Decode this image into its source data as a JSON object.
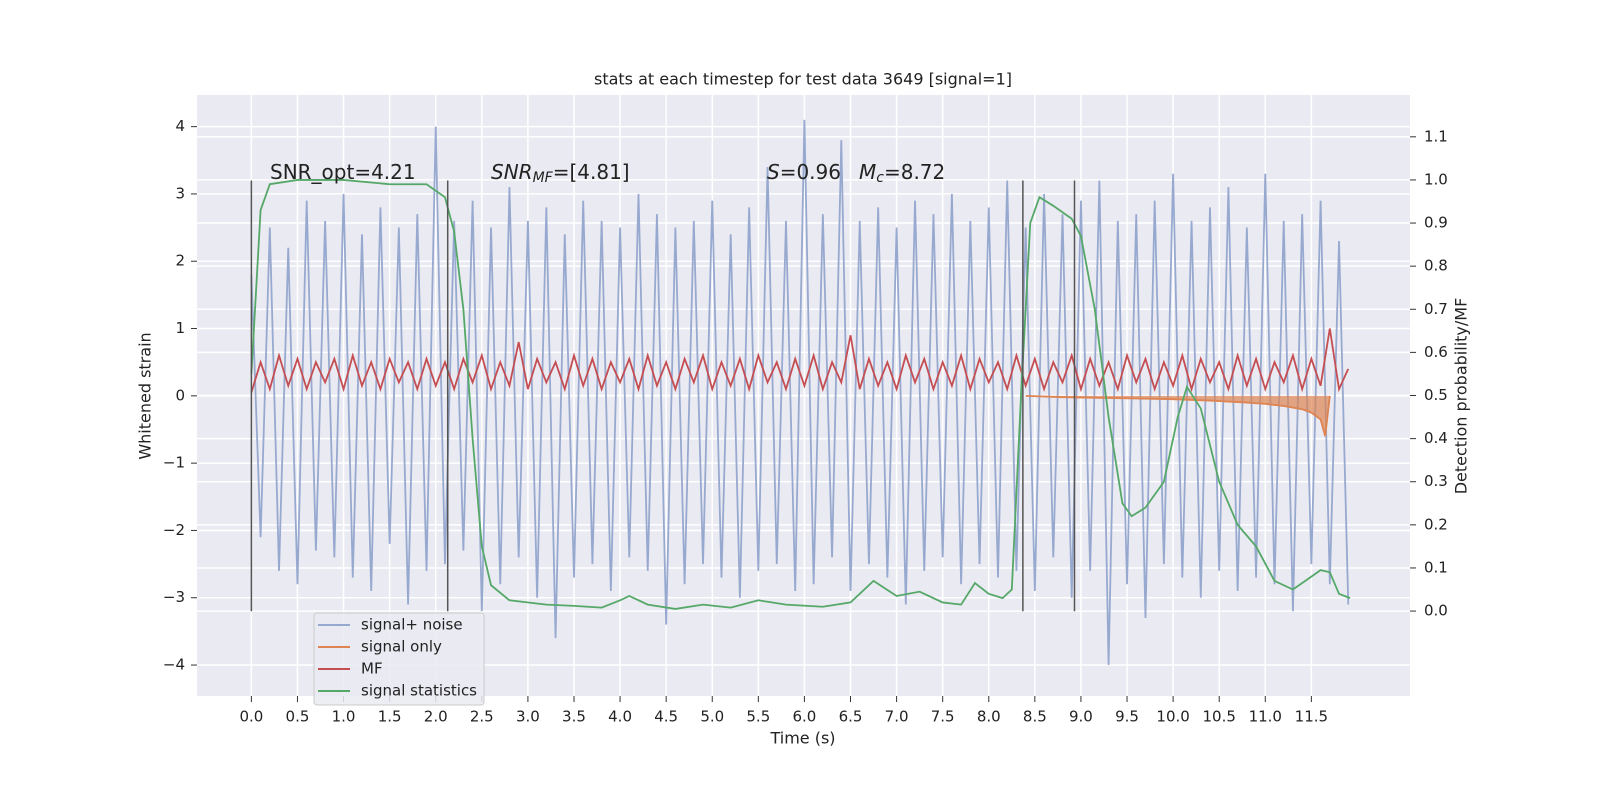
{
  "chart_data": {
    "type": "line",
    "title": "stats at each timestep for test data 3649 [signal=1]",
    "xlabel": "Time (s)",
    "ylabel": "Whitened strain",
    "y2label": "Detection probability/MF",
    "annotations": [
      [
        "SNR_opt=4.21"
      ],
      [
        "SNR",
        "MF",
        "=[4.81]"
      ],
      [
        "S",
        "=0.96",
        "M",
        "c",
        "=8.72"
      ]
    ],
    "xlim": [
      -0.59,
      12.57
    ],
    "ylim": [
      -4.46,
      4.47
    ],
    "y2lim": [
      -0.197,
      1.197
    ],
    "grid": true,
    "legend": "lower left",
    "xticks": [
      {
        "value": 0,
        "label": "0.0"
      },
      {
        "value": 0.5,
        "label": "0.5"
      },
      {
        "value": 1,
        "label": "1.0"
      },
      {
        "value": 1.5,
        "label": "1.5"
      },
      {
        "value": 2,
        "label": "2.0"
      },
      {
        "value": 2.5,
        "label": "2.5"
      },
      {
        "value": 3,
        "label": "3.0"
      },
      {
        "value": 3.5,
        "label": "3.5"
      },
      {
        "value": 4,
        "label": "4.0"
      },
      {
        "value": 4.5,
        "label": "4.5"
      },
      {
        "value": 5,
        "label": "5.0"
      },
      {
        "value": 5.5,
        "label": "5.5"
      },
      {
        "value": 6,
        "label": "6.0"
      },
      {
        "value": 6.5,
        "label": "6.5"
      },
      {
        "value": 7,
        "label": "7.0"
      },
      {
        "value": 7.5,
        "label": "7.5"
      },
      {
        "value": 8,
        "label": "8.0"
      },
      {
        "value": 8.5,
        "label": "8.5"
      },
      {
        "value": 9,
        "label": "9.0"
      },
      {
        "value": 9.5,
        "label": "9.5"
      },
      {
        "value": 10,
        "label": "10.0"
      },
      {
        "value": 10.5,
        "label": "10.5"
      },
      {
        "value": 11,
        "label": "11.0"
      },
      {
        "value": 11.5,
        "label": "11.5"
      }
    ],
    "yticks": [
      {
        "value": -4,
        "label": "−4"
      },
      {
        "value": -3,
        "label": "−3"
      },
      {
        "value": -2,
        "label": "−2"
      },
      {
        "value": -1,
        "label": "−1"
      },
      0,
      1,
      2,
      3,
      4
    ],
    "y2ticks": [
      {
        "value": 0,
        "label": "0.0"
      },
      {
        "value": 0.1,
        "label": "0.1"
      },
      {
        "value": 0.2,
        "label": "0.2"
      },
      {
        "value": 0.3,
        "label": "0.3"
      },
      {
        "value": 0.4,
        "label": "0.4"
      },
      {
        "value": 0.5,
        "label": "0.5"
      },
      {
        "value": 0.6,
        "label": "0.6"
      },
      {
        "value": 0.7,
        "label": "0.7"
      },
      {
        "value": 0.8,
        "label": "0.8"
      },
      {
        "value": 0.9,
        "label": "0.9"
      },
      {
        "value": 1,
        "label": "1.0"
      },
      {
        "value": 1.1,
        "label": "1.1"
      }
    ],
    "vlines": {
      "x": [
        0,
        2.13,
        8.37,
        8.93
      ],
      "ymin": -3.2,
      "ymax": 3.2,
      "color": "#555555"
    },
    "x": [
      0,
      0.1,
      0.2,
      0.3,
      0.4,
      0.5,
      0.6,
      0.7,
      0.8,
      0.9,
      1,
      1.1,
      1.2,
      1.3,
      1.4,
      1.5,
      1.6,
      1.7,
      1.8,
      1.9,
      2,
      2.1,
      2.2,
      2.3,
      2.4,
      2.5,
      2.6,
      2.7,
      2.8,
      2.9,
      3,
      3.1,
      3.2,
      3.3,
      3.4,
      3.5,
      3.6,
      3.7,
      3.8,
      3.9,
      4,
      4.1,
      4.2,
      4.3,
      4.4,
      4.5,
      4.6,
      4.7,
      4.8,
      4.9,
      5,
      5.1,
      5.2,
      5.3,
      5.4,
      5.5,
      5.6,
      5.7,
      5.8,
      5.9,
      6,
      6.1,
      6.2,
      6.3,
      6.4,
      6.5,
      6.6,
      6.7,
      6.8,
      6.9,
      7,
      7.1,
      7.2,
      7.3,
      7.4,
      7.5,
      7.6,
      7.7,
      7.8,
      7.9,
      8,
      8.1,
      8.2,
      8.3,
      8.4,
      8.5,
      8.6,
      8.7,
      8.8,
      8.9,
      9,
      9.1,
      9.2,
      9.3,
      9.4,
      9.5,
      9.6,
      9.7,
      9.8,
      9.9,
      10,
      10.1,
      10.2,
      10.3,
      10.4,
      10.5,
      10.6,
      10.7,
      10.8,
      10.9,
      11,
      11.1,
      11.2,
      11.3,
      11.4,
      11.5,
      11.6,
      11.7,
      11.8,
      11.9
    ],
    "series": [
      {
        "name": "signal+ noise",
        "color": "#98a9cf",
        "values": [
          1.8,
          -2.1,
          2.5,
          -2.6,
          2.2,
          -2.8,
          2.9,
          -2.3,
          2.6,
          -2.4,
          3.0,
          -2.7,
          2.4,
          -2.9,
          2.8,
          -2.2,
          2.5,
          -3.1,
          2.7,
          -2.6,
          4.0,
          -2.5,
          2.6,
          -2.3,
          2.9,
          -3.2,
          2.5,
          -2.8,
          3.1,
          -2.4,
          2.6,
          -3.0,
          2.8,
          -3.6,
          2.4,
          -2.7,
          2.9,
          -2.5,
          2.6,
          -2.9,
          2.5,
          -2.4,
          3.0,
          -2.6,
          2.7,
          -3.4,
          2.5,
          -2.8,
          2.6,
          -2.5,
          2.9,
          -2.7,
          2.4,
          -3.0,
          2.8,
          -2.6,
          3.4,
          -2.5,
          2.6,
          -2.9,
          4.1,
          -2.8,
          2.7,
          -2.4,
          3.8,
          -2.9,
          2.6,
          -2.5,
          2.8,
          -2.7,
          2.5,
          -3.1,
          2.9,
          -2.6,
          2.7,
          -2.4,
          3.0,
          -2.8,
          2.6,
          -2.5,
          2.8,
          -2.7,
          3.2,
          -2.6,
          2.5,
          -2.9,
          3.0,
          -2.4,
          2.7,
          -3.0,
          2.9,
          -2.6,
          3.2,
          -4.0,
          2.6,
          -2.8,
          2.7,
          -3.3,
          2.9,
          -2.5,
          3.3,
          -2.7,
          2.6,
          -3.0,
          2.8,
          -2.6,
          3.1,
          -2.9,
          2.5,
          -2.7,
          3.3,
          -2.8,
          2.6,
          -3.2,
          2.7,
          -2.5,
          2.9,
          -2.8,
          2.3,
          -3.1
        ]
      },
      {
        "name": "signal only",
        "color": "#dd8452",
        "x": [
          8.4,
          8.8,
          9.2,
          9.6,
          10.0,
          10.4,
          10.8,
          11.0,
          11.2,
          11.4,
          11.5,
          11.6,
          11.65,
          11.7
        ],
        "values": [
          0,
          -0.02,
          -0.03,
          -0.04,
          -0.05,
          -0.07,
          -0.1,
          -0.12,
          -0.15,
          -0.2,
          -0.25,
          -0.35,
          -0.6,
          0
        ]
      },
      {
        "name": "MF",
        "color": "#c44e52",
        "values": [
          0.05,
          0.5,
          0.1,
          0.6,
          0.15,
          0.55,
          0.1,
          0.5,
          0.2,
          0.55,
          0.1,
          0.6,
          0.15,
          0.5,
          0.1,
          0.55,
          0.2,
          0.5,
          0.1,
          0.55,
          0.15,
          0.5,
          0.1,
          0.55,
          0.2,
          0.6,
          0.1,
          0.5,
          0.15,
          0.8,
          0.1,
          0.55,
          0.2,
          0.5,
          0.1,
          0.6,
          0.15,
          0.55,
          0.1,
          0.5,
          0.2,
          0.55,
          0.1,
          0.6,
          0.15,
          0.5,
          0.1,
          0.55,
          0.2,
          0.6,
          0.1,
          0.5,
          0.15,
          0.55,
          0.1,
          0.6,
          0.2,
          0.5,
          0.1,
          0.55,
          0.15,
          0.6,
          0.1,
          0.5,
          0.2,
          0.9,
          0.1,
          0.55,
          0.15,
          0.5,
          0.1,
          0.6,
          0.2,
          0.55,
          0.1,
          0.5,
          0.15,
          0.6,
          0.1,
          0.55,
          0.2,
          0.5,
          0.1,
          0.6,
          0.15,
          0.55,
          0.1,
          0.5,
          0.2,
          0.6,
          0.1,
          0.55,
          0.15,
          0.5,
          0.1,
          0.6,
          0.2,
          0.55,
          0.1,
          0.5,
          0.15,
          0.6,
          0.1,
          0.55,
          0.2,
          0.5,
          0.1,
          0.6,
          0.15,
          0.55,
          0.1,
          0.5,
          0.2,
          0.6,
          0.1,
          0.55,
          0.15,
          1.0,
          0.1,
          0.4
        ]
      },
      {
        "name": "signal statistics",
        "color": "#55a868",
        "axis": "y2",
        "x": [
          0,
          0.1,
          0.2,
          0.5,
          1.0,
          1.5,
          1.9,
          2.1,
          2.2,
          2.3,
          2.4,
          2.5,
          2.6,
          2.8,
          3.2,
          3.5,
          3.8,
          4.0,
          4.1,
          4.3,
          4.6,
          4.9,
          5.2,
          5.5,
          5.8,
          6.2,
          6.5,
          6.75,
          7.0,
          7.25,
          7.5,
          7.7,
          7.85,
          8.0,
          8.15,
          8.25,
          8.35,
          8.45,
          8.55,
          8.7,
          8.9,
          9.0,
          9.15,
          9.3,
          9.45,
          9.55,
          9.7,
          9.9,
          10.05,
          10.15,
          10.3,
          10.5,
          10.7,
          10.9,
          11.1,
          11.3,
          11.5,
          11.6,
          11.7,
          11.8,
          11.92
        ],
        "values": [
          0.55,
          0.93,
          0.99,
          1.0,
          1.0,
          0.99,
          0.99,
          0.96,
          0.88,
          0.7,
          0.4,
          0.15,
          0.06,
          0.025,
          0.015,
          0.012,
          0.008,
          0.025,
          0.035,
          0.015,
          0.005,
          0.015,
          0.008,
          0.025,
          0.015,
          0.01,
          0.02,
          0.07,
          0.035,
          0.045,
          0.02,
          0.015,
          0.065,
          0.04,
          0.03,
          0.05,
          0.5,
          0.9,
          0.96,
          0.94,
          0.91,
          0.87,
          0.7,
          0.45,
          0.25,
          0.22,
          0.24,
          0.3,
          0.45,
          0.52,
          0.47,
          0.3,
          0.2,
          0.15,
          0.07,
          0.05,
          0.08,
          0.095,
          0.09,
          0.04,
          0.03
        ]
      }
    ]
  }
}
